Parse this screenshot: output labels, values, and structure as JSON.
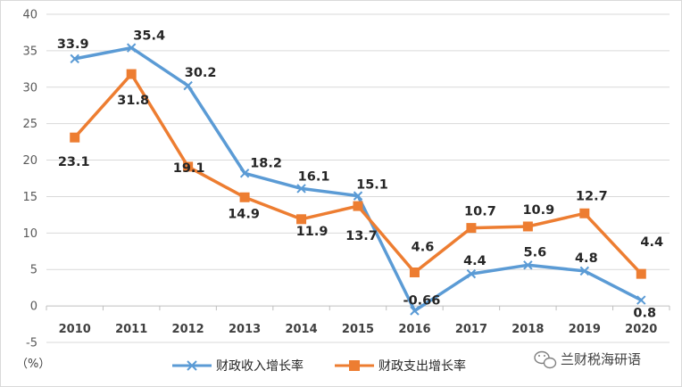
{
  "chart_data": {
    "type": "line",
    "title": "",
    "xlabel": "",
    "ylabel": "",
    "unit_label": "（%）",
    "categories": [
      "2010",
      "2011",
      "2012",
      "2013",
      "2014",
      "2015",
      "2016",
      "2017",
      "2018",
      "2019",
      "2020"
    ],
    "ylim": [
      -5,
      40
    ],
    "yticks": [
      "-5",
      "0",
      "5",
      "10",
      "15",
      "20",
      "25",
      "30",
      "35",
      "40"
    ],
    "grid": true,
    "legend_position": "bottom",
    "series": [
      {
        "name": "财政收入增长率",
        "color": "#5b9bd5",
        "marker": "x",
        "values": [
          33.9,
          35.4,
          30.2,
          18.2,
          16.1,
          15.1,
          -0.66,
          4.4,
          5.6,
          4.8,
          0.8
        ],
        "labels": [
          "33.9",
          "35.4",
          "30.2",
          "18.2",
          "16.1",
          "15.1",
          "-0.66",
          "4.4",
          "5.6",
          "4.8",
          "0.8"
        ]
      },
      {
        "name": "财政支出增长率",
        "color": "#ed7d31",
        "marker": "square",
        "values": [
          23.1,
          31.8,
          19.1,
          14.9,
          11.9,
          13.7,
          4.6,
          10.7,
          10.9,
          12.7,
          4.4
        ],
        "labels": [
          "23.1",
          "31.8",
          "19.1",
          "14.9",
          "11.9",
          "13.7",
          "4.6",
          "10.7",
          "10.9",
          "12.7",
          "4.4"
        ]
      }
    ]
  },
  "watermark": {
    "icon": "wechat-icon",
    "text": "兰财税海研语"
  }
}
